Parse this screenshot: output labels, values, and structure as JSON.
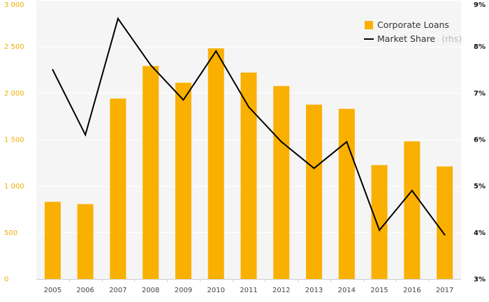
{
  "chart_data": {
    "type": "bar",
    "categories": [
      "2005",
      "2006",
      "2007",
      "2008",
      "2009",
      "2010",
      "2011",
      "2012",
      "2013",
      "2014",
      "2015",
      "2016",
      "2017"
    ],
    "series": [
      {
        "name": "Corporate Loans",
        "kind": "bar",
        "axis": "left",
        "color": "#F9B000",
        "values": [
          830,
          805,
          1940,
          2290,
          2110,
          2480,
          2220,
          2075,
          1875,
          1830,
          1225,
          1480,
          1210
        ]
      },
      {
        "name": "Market Share",
        "kind": "line",
        "axis": "right",
        "color": "#000000",
        "values": [
          7.5,
          6.1,
          8.6,
          7.6,
          6.85,
          7.9,
          6.7,
          5.95,
          5.38,
          5.95,
          4.05,
          4.9,
          3.95
        ]
      }
    ],
    "left_axis": {
      "ylim": [
        0,
        3000
      ],
      "ticks": [
        0,
        500,
        1000,
        1500,
        2000,
        2500,
        3000
      ],
      "tick_labels": [
        "0",
        "500",
        "1 000",
        "1 500",
        "2 000",
        "2 500",
        "3 000"
      ],
      "color": "#F0AE00"
    },
    "right_axis": {
      "ylim": [
        3,
        9
      ],
      "ticks": [
        3,
        4,
        5,
        6,
        7,
        8,
        9
      ],
      "tick_labels": [
        "3%",
        "4%",
        "5%",
        "6%",
        "7%",
        "8%",
        "9%"
      ]
    },
    "legend": {
      "position": "top-right",
      "items": [
        {
          "label": "Corporate Loans",
          "suffix": ""
        },
        {
          "label": "Market Share",
          "suffix": "(rhs)"
        }
      ]
    },
    "grid": true,
    "plot_background": "#F5F5F5"
  }
}
